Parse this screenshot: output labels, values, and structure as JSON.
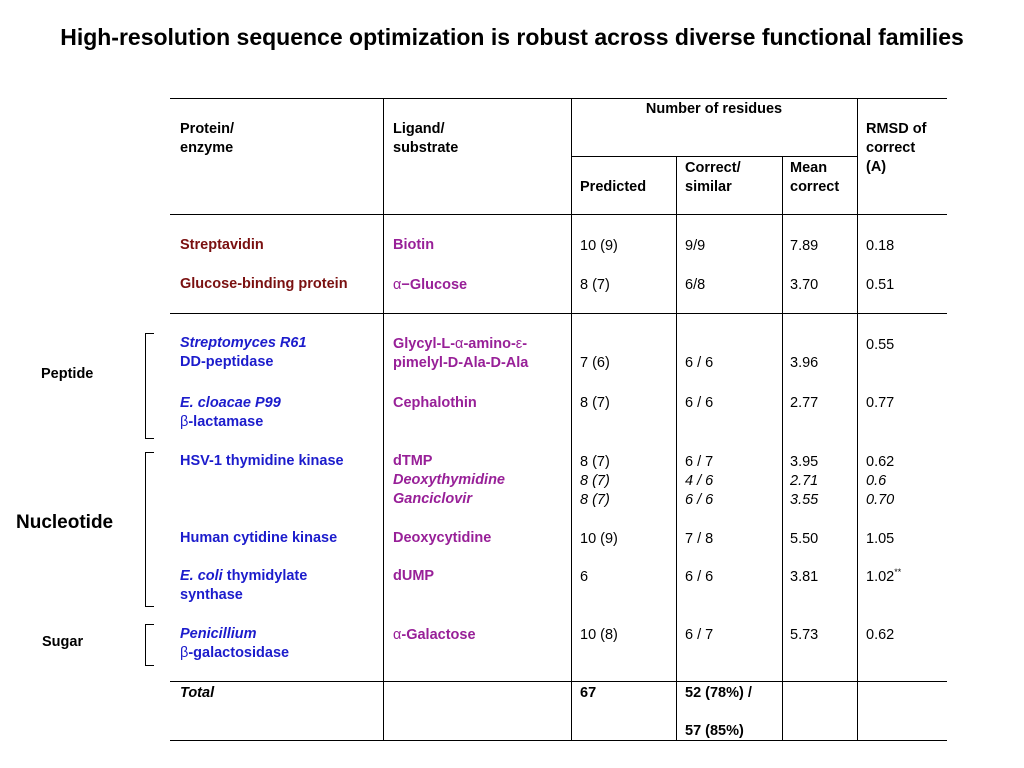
{
  "title": "High-resolution sequence optimization is robust across diverse functional families",
  "headers": {
    "protein": [
      "Protein/",
      "enzyme"
    ],
    "ligand": [
      "Ligand/",
      "substrate"
    ],
    "num_residues": "Number of residues",
    "predicted": "Predicted",
    "correct": [
      "Correct/",
      "similar"
    ],
    "mean": [
      "Mean",
      "correct"
    ],
    "rmsd": [
      "RMSD of",
      "correct",
      "(A)"
    ]
  },
  "groups": {
    "peptide": "Peptide",
    "nucleotide": "Nucleotide",
    "sugar": "Sugar"
  },
  "rows": {
    "streptavidin": {
      "protein": "Streptavidin",
      "ligand": "Biotin",
      "predicted": "10 (9)",
      "correct": "9/9",
      "mean": "7.89",
      "rmsd": "0.18"
    },
    "gbp": {
      "protein": "Glucose-binding protein",
      "ligand_greek": "α",
      "ligand": "−Glucose",
      "predicted": "8 (7)",
      "correct": "6/8",
      "mean": "3.70",
      "rmsd": "0.51"
    },
    "strep_r61": {
      "protein_line1": "Streptomyces R61",
      "protein_line2": "DD-peptidase",
      "ligand_a": "Glycyl-L-",
      "ligand_alpha": "α",
      "ligand_b": "-amino-",
      "ligand_eps": "ε",
      "ligand_c": "-",
      "ligand_line2": "pimelyl-D-Ala-D-Ala",
      "predicted": "7 (6)",
      "correct": "6 / 6",
      "mean": "3.96",
      "rmsd": "0.55"
    },
    "ecloacae": {
      "protein_line1": "E. cloacae P99",
      "protein_beta": "β",
      "protein_line2": "-lactamase",
      "ligand": "Cephalothin",
      "predicted": "8 (7)",
      "correct": "6 / 6",
      "mean": "2.77",
      "rmsd": "0.77"
    },
    "hsv": {
      "protein": "HSV-1 thymidine kinase",
      "ligands": [
        "dTMP",
        "Deoxythymidine",
        "Ganciclovir"
      ],
      "predicted": [
        "8 (7)",
        "8 (7)",
        "8 (7)"
      ],
      "correct": [
        "6 / 7",
        "4 / 6",
        "6 / 6"
      ],
      "mean": [
        "3.95",
        "2.71",
        "3.55"
      ],
      "rmsd": [
        "0.62",
        "0.6",
        "0.70"
      ]
    },
    "hck": {
      "protein": "Human cytidine kinase",
      "ligand": "Deoxycytidine",
      "predicted": "10 (9)",
      "correct": "7 / 8",
      "mean": "5.50",
      "rmsd": "1.05"
    },
    "ecoli": {
      "protein_italic": "E. coli",
      "protein_rest": " thymidylate",
      "protein_line2": "synthase",
      "ligand": "dUMP",
      "predicted": "6",
      "correct": "6 / 6",
      "mean": "3.81",
      "rmsd": "1.02",
      "rmsd_note": "**"
    },
    "penicillium": {
      "protein_line1": "Penicillium",
      "protein_beta": "β",
      "protein_line2": "-galactosidase",
      "ligand_greek": "α",
      "ligand": "-Galactose",
      "predicted": "10 (8)",
      "correct": "6 / 7",
      "mean": "5.73",
      "rmsd": "0.62"
    }
  },
  "total": {
    "label": "Total",
    "predicted": "67",
    "correct_line1": "52 (78%) /",
    "correct_line2": "57 (85%)"
  },
  "colors": {
    "dark_red": "#7a1010",
    "blue": "#1c1ccc",
    "purple": "#982098"
  }
}
